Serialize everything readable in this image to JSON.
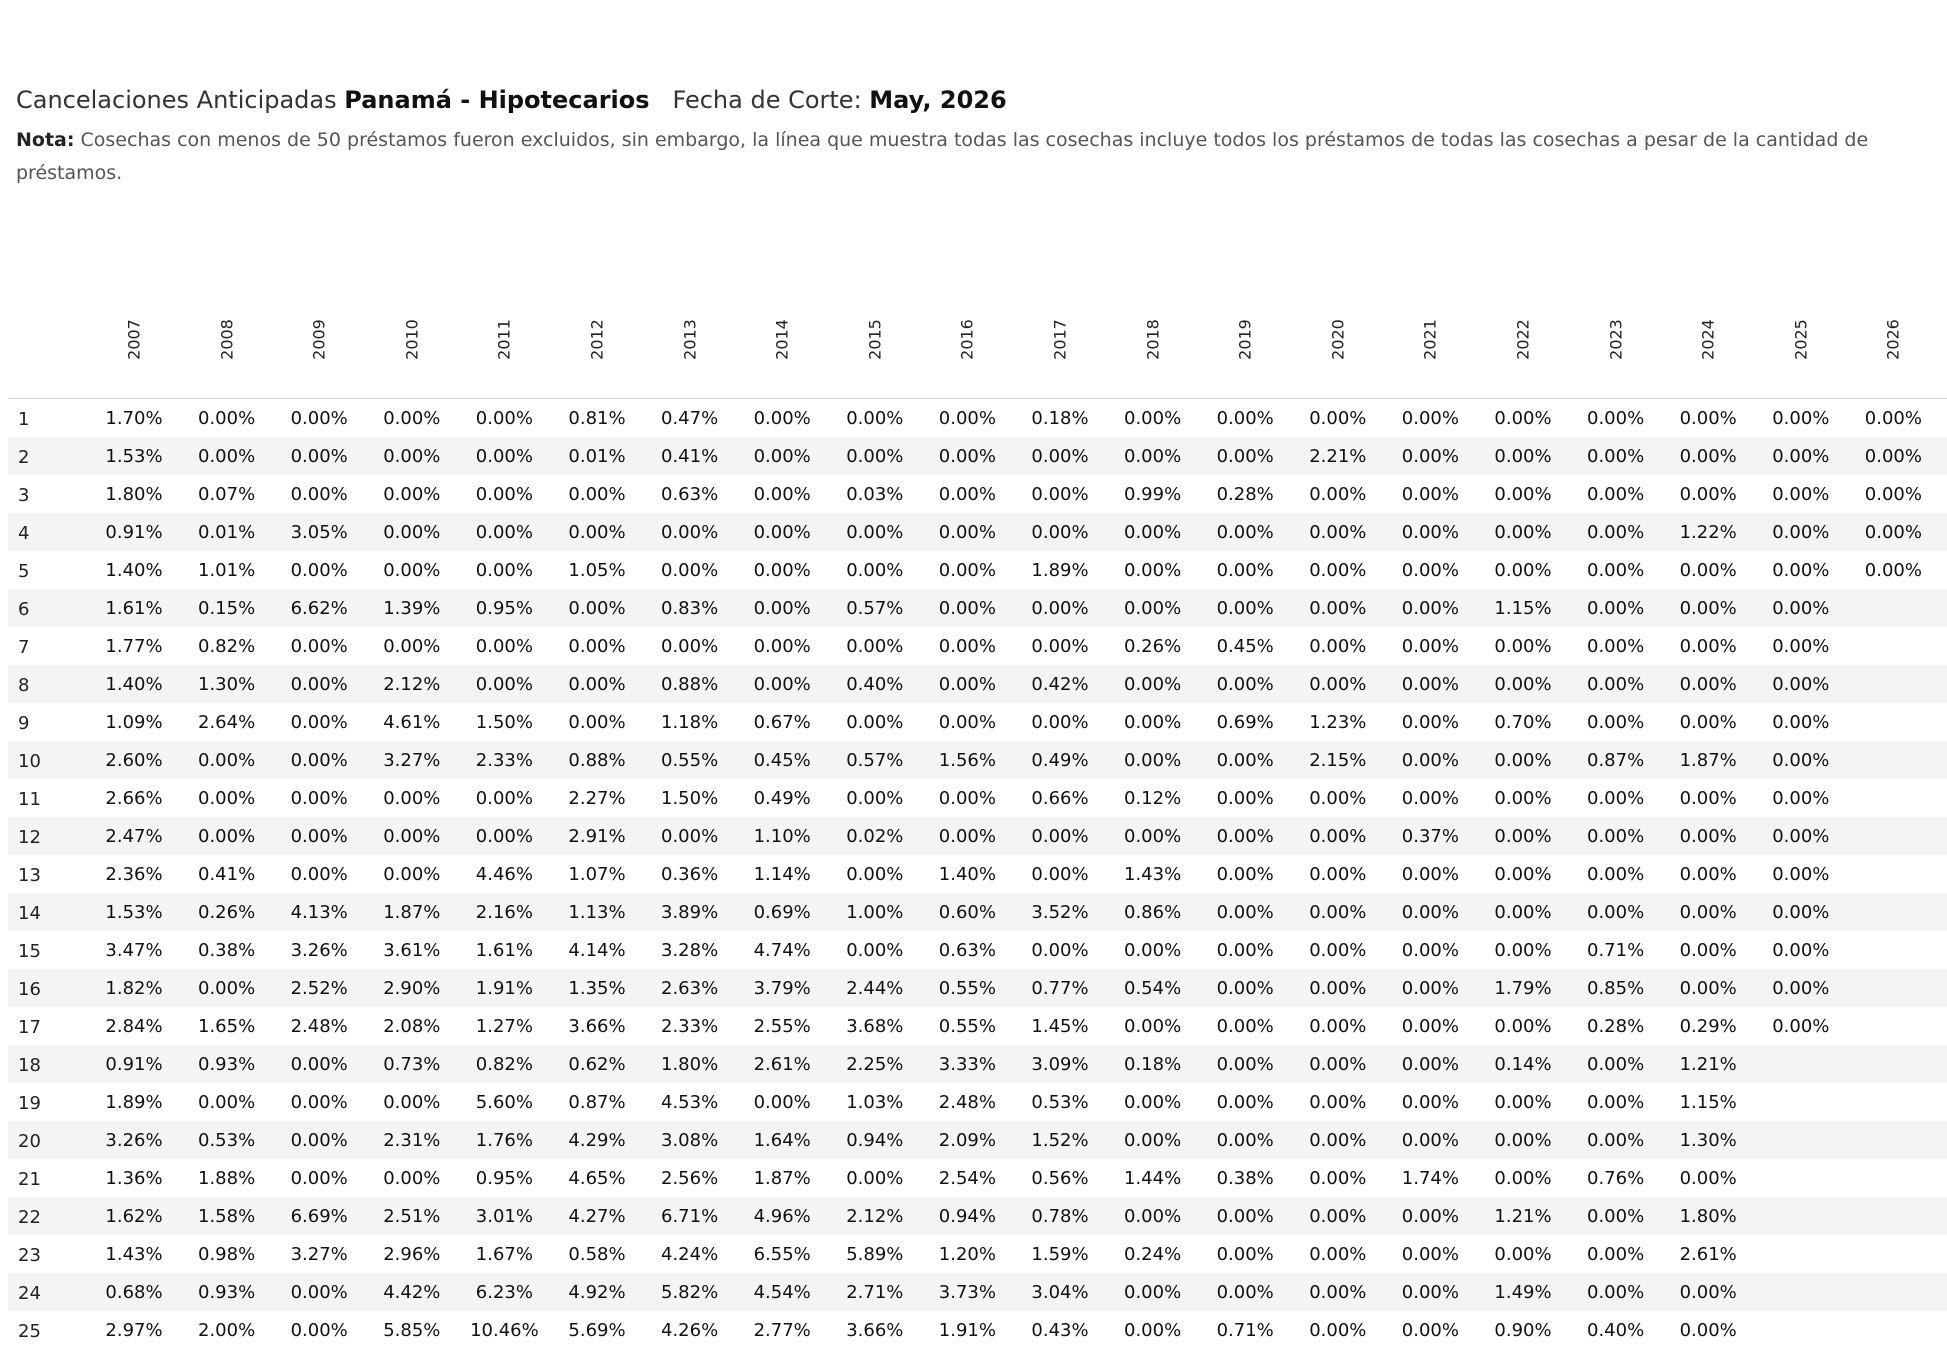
{
  "title": {
    "prefix": "Cancelaciones Anticipadas",
    "subject": "Panamá - Hipotecarios",
    "date_label": "Fecha de Corte:",
    "date_value": "May, 2026"
  },
  "note": {
    "label": "Nota:",
    "text": "Cosechas con menos de 50 préstamos fueron excluidos, sin embargo, la línea que muestra todas las cosechas incluye todos los préstamos de todas  las cosechas a pesar de la cantidad de préstamos."
  },
  "columns": [
    "2007",
    "2008",
    "2009",
    "2010",
    "2011",
    "2012",
    "2013",
    "2014",
    "2015",
    "2016",
    "2017",
    "2018",
    "2019",
    "2020",
    "2021",
    "2022",
    "2023",
    "2024",
    "2025",
    "2026"
  ],
  "rows": [
    {
      "label": "1",
      "values": [
        "1.70%",
        "0.00%",
        "0.00%",
        "0.00%",
        "0.00%",
        "0.81%",
        "0.47%",
        "0.00%",
        "0.00%",
        "0.00%",
        "0.18%",
        "0.00%",
        "0.00%",
        "0.00%",
        "0.00%",
        "0.00%",
        "0.00%",
        "0.00%",
        "0.00%",
        "0.00%"
      ]
    },
    {
      "label": "2",
      "values": [
        "1.53%",
        "0.00%",
        "0.00%",
        "0.00%",
        "0.00%",
        "0.01%",
        "0.41%",
        "0.00%",
        "0.00%",
        "0.00%",
        "0.00%",
        "0.00%",
        "0.00%",
        "2.21%",
        "0.00%",
        "0.00%",
        "0.00%",
        "0.00%",
        "0.00%",
        "0.00%"
      ]
    },
    {
      "label": "3",
      "values": [
        "1.80%",
        "0.07%",
        "0.00%",
        "0.00%",
        "0.00%",
        "0.00%",
        "0.63%",
        "0.00%",
        "0.03%",
        "0.00%",
        "0.00%",
        "0.99%",
        "0.28%",
        "0.00%",
        "0.00%",
        "0.00%",
        "0.00%",
        "0.00%",
        "0.00%",
        "0.00%"
      ]
    },
    {
      "label": "4",
      "values": [
        "0.91%",
        "0.01%",
        "3.05%",
        "0.00%",
        "0.00%",
        "0.00%",
        "0.00%",
        "0.00%",
        "0.00%",
        "0.00%",
        "0.00%",
        "0.00%",
        "0.00%",
        "0.00%",
        "0.00%",
        "0.00%",
        "0.00%",
        "1.22%",
        "0.00%",
        "0.00%"
      ]
    },
    {
      "label": "5",
      "values": [
        "1.40%",
        "1.01%",
        "0.00%",
        "0.00%",
        "0.00%",
        "1.05%",
        "0.00%",
        "0.00%",
        "0.00%",
        "0.00%",
        "1.89%",
        "0.00%",
        "0.00%",
        "0.00%",
        "0.00%",
        "0.00%",
        "0.00%",
        "0.00%",
        "0.00%",
        "0.00%"
      ]
    },
    {
      "label": "6",
      "values": [
        "1.61%",
        "0.15%",
        "6.62%",
        "1.39%",
        "0.95%",
        "0.00%",
        "0.83%",
        "0.00%",
        "0.57%",
        "0.00%",
        "0.00%",
        "0.00%",
        "0.00%",
        "0.00%",
        "0.00%",
        "1.15%",
        "0.00%",
        "0.00%",
        "0.00%",
        ""
      ]
    },
    {
      "label": "7",
      "values": [
        "1.77%",
        "0.82%",
        "0.00%",
        "0.00%",
        "0.00%",
        "0.00%",
        "0.00%",
        "0.00%",
        "0.00%",
        "0.00%",
        "0.00%",
        "0.26%",
        "0.45%",
        "0.00%",
        "0.00%",
        "0.00%",
        "0.00%",
        "0.00%",
        "0.00%",
        ""
      ]
    },
    {
      "label": "8",
      "values": [
        "1.40%",
        "1.30%",
        "0.00%",
        "2.12%",
        "0.00%",
        "0.00%",
        "0.88%",
        "0.00%",
        "0.40%",
        "0.00%",
        "0.42%",
        "0.00%",
        "0.00%",
        "0.00%",
        "0.00%",
        "0.00%",
        "0.00%",
        "0.00%",
        "0.00%",
        ""
      ]
    },
    {
      "label": "9",
      "values": [
        "1.09%",
        "2.64%",
        "0.00%",
        "4.61%",
        "1.50%",
        "0.00%",
        "1.18%",
        "0.67%",
        "0.00%",
        "0.00%",
        "0.00%",
        "0.00%",
        "0.69%",
        "1.23%",
        "0.00%",
        "0.70%",
        "0.00%",
        "0.00%",
        "0.00%",
        ""
      ]
    },
    {
      "label": "10",
      "values": [
        "2.60%",
        "0.00%",
        "0.00%",
        "3.27%",
        "2.33%",
        "0.88%",
        "0.55%",
        "0.45%",
        "0.57%",
        "1.56%",
        "0.49%",
        "0.00%",
        "0.00%",
        "2.15%",
        "0.00%",
        "0.00%",
        "0.87%",
        "1.87%",
        "0.00%",
        ""
      ]
    },
    {
      "label": "11",
      "values": [
        "2.66%",
        "0.00%",
        "0.00%",
        "0.00%",
        "0.00%",
        "2.27%",
        "1.50%",
        "0.49%",
        "0.00%",
        "0.00%",
        "0.66%",
        "0.12%",
        "0.00%",
        "0.00%",
        "0.00%",
        "0.00%",
        "0.00%",
        "0.00%",
        "0.00%",
        ""
      ]
    },
    {
      "label": "12",
      "values": [
        "2.47%",
        "0.00%",
        "0.00%",
        "0.00%",
        "0.00%",
        "2.91%",
        "0.00%",
        "1.10%",
        "0.02%",
        "0.00%",
        "0.00%",
        "0.00%",
        "0.00%",
        "0.00%",
        "0.37%",
        "0.00%",
        "0.00%",
        "0.00%",
        "0.00%",
        ""
      ]
    },
    {
      "label": "13",
      "values": [
        "2.36%",
        "0.41%",
        "0.00%",
        "0.00%",
        "4.46%",
        "1.07%",
        "0.36%",
        "1.14%",
        "0.00%",
        "1.40%",
        "0.00%",
        "1.43%",
        "0.00%",
        "0.00%",
        "0.00%",
        "0.00%",
        "0.00%",
        "0.00%",
        "0.00%",
        ""
      ]
    },
    {
      "label": "14",
      "values": [
        "1.53%",
        "0.26%",
        "4.13%",
        "1.87%",
        "2.16%",
        "1.13%",
        "3.89%",
        "0.69%",
        "1.00%",
        "0.60%",
        "3.52%",
        "0.86%",
        "0.00%",
        "0.00%",
        "0.00%",
        "0.00%",
        "0.00%",
        "0.00%",
        "0.00%",
        ""
      ]
    },
    {
      "label": "15",
      "values": [
        "3.47%",
        "0.38%",
        "3.26%",
        "3.61%",
        "1.61%",
        "4.14%",
        "3.28%",
        "4.74%",
        "0.00%",
        "0.63%",
        "0.00%",
        "0.00%",
        "0.00%",
        "0.00%",
        "0.00%",
        "0.00%",
        "0.71%",
        "0.00%",
        "0.00%",
        ""
      ]
    },
    {
      "label": "16",
      "values": [
        "1.82%",
        "0.00%",
        "2.52%",
        "2.90%",
        "1.91%",
        "1.35%",
        "2.63%",
        "3.79%",
        "2.44%",
        "0.55%",
        "0.77%",
        "0.54%",
        "0.00%",
        "0.00%",
        "0.00%",
        "1.79%",
        "0.85%",
        "0.00%",
        "0.00%",
        ""
      ]
    },
    {
      "label": "17",
      "values": [
        "2.84%",
        "1.65%",
        "2.48%",
        "2.08%",
        "1.27%",
        "3.66%",
        "2.33%",
        "2.55%",
        "3.68%",
        "0.55%",
        "1.45%",
        "0.00%",
        "0.00%",
        "0.00%",
        "0.00%",
        "0.00%",
        "0.28%",
        "0.29%",
        "0.00%",
        ""
      ]
    },
    {
      "label": "18",
      "values": [
        "0.91%",
        "0.93%",
        "0.00%",
        "0.73%",
        "0.82%",
        "0.62%",
        "1.80%",
        "2.61%",
        "2.25%",
        "3.33%",
        "3.09%",
        "0.18%",
        "0.00%",
        "0.00%",
        "0.00%",
        "0.14%",
        "0.00%",
        "1.21%",
        "",
        ""
      ]
    },
    {
      "label": "19",
      "values": [
        "1.89%",
        "0.00%",
        "0.00%",
        "0.00%",
        "5.60%",
        "0.87%",
        "4.53%",
        "0.00%",
        "1.03%",
        "2.48%",
        "0.53%",
        "0.00%",
        "0.00%",
        "0.00%",
        "0.00%",
        "0.00%",
        "0.00%",
        "1.15%",
        "",
        ""
      ]
    },
    {
      "label": "20",
      "values": [
        "3.26%",
        "0.53%",
        "0.00%",
        "2.31%",
        "1.76%",
        "4.29%",
        "3.08%",
        "1.64%",
        "0.94%",
        "2.09%",
        "1.52%",
        "0.00%",
        "0.00%",
        "0.00%",
        "0.00%",
        "0.00%",
        "0.00%",
        "1.30%",
        "",
        ""
      ]
    },
    {
      "label": "21",
      "values": [
        "1.36%",
        "1.88%",
        "0.00%",
        "0.00%",
        "0.95%",
        "4.65%",
        "2.56%",
        "1.87%",
        "0.00%",
        "2.54%",
        "0.56%",
        "1.44%",
        "0.38%",
        "0.00%",
        "1.74%",
        "0.00%",
        "0.76%",
        "0.00%",
        "",
        ""
      ]
    },
    {
      "label": "22",
      "values": [
        "1.62%",
        "1.58%",
        "6.69%",
        "2.51%",
        "3.01%",
        "4.27%",
        "6.71%",
        "4.96%",
        "2.12%",
        "0.94%",
        "0.78%",
        "0.00%",
        "0.00%",
        "0.00%",
        "0.00%",
        "1.21%",
        "0.00%",
        "1.80%",
        "",
        ""
      ]
    },
    {
      "label": "23",
      "values": [
        "1.43%",
        "0.98%",
        "3.27%",
        "2.96%",
        "1.67%",
        "0.58%",
        "4.24%",
        "6.55%",
        "5.89%",
        "1.20%",
        "1.59%",
        "0.24%",
        "0.00%",
        "0.00%",
        "0.00%",
        "0.00%",
        "0.00%",
        "2.61%",
        "",
        ""
      ]
    },
    {
      "label": "24",
      "values": [
        "0.68%",
        "0.93%",
        "0.00%",
        "4.42%",
        "6.23%",
        "4.92%",
        "5.82%",
        "4.54%",
        "2.71%",
        "3.73%",
        "3.04%",
        "0.00%",
        "0.00%",
        "0.00%",
        "0.00%",
        "1.49%",
        "0.00%",
        "0.00%",
        "",
        ""
      ]
    },
    {
      "label": "25",
      "values": [
        "2.97%",
        "2.00%",
        "0.00%",
        "5.85%",
        "10.46%",
        "5.69%",
        "4.26%",
        "2.77%",
        "3.66%",
        "1.91%",
        "0.43%",
        "0.00%",
        "0.71%",
        "0.00%",
        "0.00%",
        "0.90%",
        "0.40%",
        "0.00%",
        "",
        ""
      ]
    }
  ]
}
